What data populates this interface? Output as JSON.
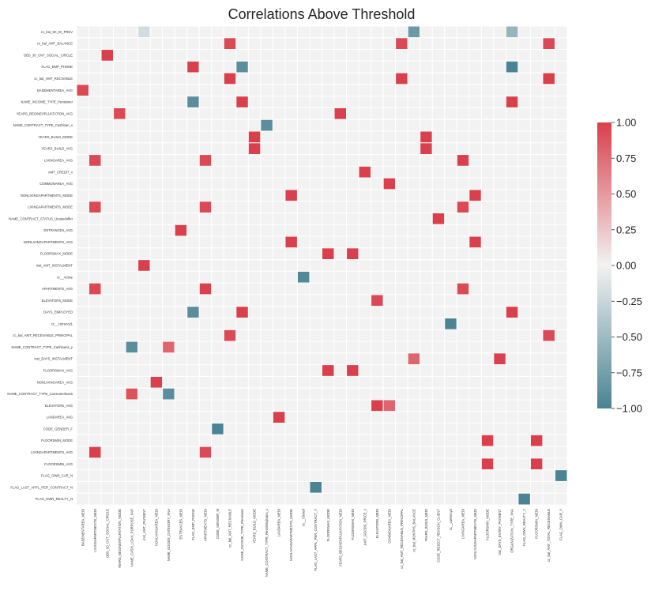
{
  "chart_data": {
    "type": "heatmap",
    "title": "Correlations Above Threshold",
    "xlabel": "",
    "ylabel": "",
    "colormap": {
      "low": "#4a8393",
      "mid": "#f2f2f2",
      "high": "#d9404c"
    },
    "value_range": [
      -1,
      1
    ],
    "colorbar_ticks": [
      "1.00",
      "0.75",
      "0.50",
      "0.25",
      "0.00",
      "−0.25",
      "−0.50",
      "−0.75",
      "−1.00"
    ],
    "rows": [
      "cc_bal_SK_ID_PREV",
      "cc_bal_AMT_BALANCE",
      "OBS_30_CNT_SOCIAL_CIRCLE",
      "FLAG_EMP_PHONE",
      "cc_bal_AMT_RECIVABLE",
      "BASEMENTAREA_AVG",
      "NAME_INCOME_TYPE_Pensioner",
      "YEARS_BEGINEXPLUATATION_AVG",
      "NAME_CONTRACT_TYPE_Cashloan_x",
      "YEARS_BUILD_MODE",
      "YEARS_BUILD_AVG",
      "LIVINGAREA_AVG",
      "AMT_CREDIT_x",
      "COMMONAREA_AVG",
      "NONLIVINGAPARTMENTS_MODE",
      "LIVINGAPARTMENTS_MODE",
      "NAME_CONTRACT_STATUS_Unusedoffer",
      "ENTRANCES_AVG",
      "NONLIVINGAPARTMENTS_AVG",
      "FLOORSMAX_MODE",
      "inst_AMT_INSTALMENT",
      "cc__Active",
      "APARTMENTS_AVG",
      "ELEVATORS_MODE",
      "DAYS_EMPLOYED",
      "cc__currency1",
      "cc_bal_AMT_RECEIVABLE_PRINCIPAL",
      "NAME_CONTRACT_TYPE_Cashloans_y",
      "inst_DAYS_INSTALMENT",
      "FLOORSMAX_AVG",
      "NONLIVINGAREA_AVG",
      "NAME_CONTRACT_TYPE_Consumerloans",
      "ELEVATORS_AVG",
      "LANDAREA_AVG",
      "CODE_GENDER_F",
      "FLOORSMIN_MODE",
      "LIVINGAPARTMENTS_AVG",
      "FLOORSMIN_AVG",
      "FLAG_OWN_CAR_N",
      "FLAG_LAST_APPL_PER_CONTRACT_N",
      "FLAG_OWN_REALTY_N"
    ],
    "columns": [
      "BASEMENTAREA_MEDI",
      "LIVINGAPARTMENTS_MEDI",
      "OBS_60_CNT_SOCIAL_CIRCLE",
      "YEARS_BEGINEXPLUATATION_MODE",
      "NAME_CASH_LOAN_PURPOSE_XAP",
      "inst_AMT_PAYMENT",
      "NONLIVINGAREA_MEDI",
      "NAME_GOODS_CATEGORY_XNA",
      "ENTRANCES_MEDI",
      "FLAG_EMP_PHONE",
      "APARTMENTS_MEDI",
      "CODE_GENDER_M",
      "cc_bal_AMT_RECIVABLE",
      "NAME_INCOME_TYPE_Pensioner",
      "YEARS_BUILD_MODE",
      "NAME_CONTRACT_TYPE_Revolvingloans_x",
      "LANDAREA_MEDI",
      "NONLIVINGAPARTMENTS_MODE",
      "cc__Closed",
      "FLAG_LAST_APPL_PER_CONTRACT_Y",
      "FLOORSMAX_MODE",
      "YEARS_BEGINEXPLUATATION_MEDI",
      "FLOORSMAX_MEDI",
      "AMT_GOODS_PRICE_x",
      "ELEVATORS_MEDI",
      "COMMONAREA_MEDI",
      "cc_bal_AMT_RECEIVABLE_PRINCIPAL",
      "cc_bal_MONTHS_BALANCE",
      "YEARS_BUILD_MEDI",
      "CODE_REJECT_REASON_CLIENT",
      "cc__currency2",
      "LIVINGAREA_MEDI",
      "NONLIVINGAPARTMENTS_MEDI",
      "FLOORSMIN_MODE",
      "inst_DAYS_ENTRY_PAYMENT",
      "ORGANIZATION_TYPE_XNA",
      "FLAG_OWN_REALTY_Y",
      "FLOORSMIN_MEDI",
      "cc_bal_AMT_TOTAL_RECEIVABLE",
      "FLAG_OWN_CAR_Y"
    ],
    "strong_cells": [
      {
        "row": "cc_bal_SK_ID_PREV",
        "col": "cc_bal_MONTHS_BALANCE",
        "value": -0.8
      },
      {
        "row": "cc_bal_SK_ID_PREV",
        "col": "ORGANIZATION_TYPE_XNA",
        "value": -0.55
      },
      {
        "row": "cc_bal_SK_ID_PREV",
        "col": "inst_AMT_PAYMENT",
        "value": -0.2
      },
      {
        "row": "cc_bal_AMT_BALANCE",
        "col": "cc_bal_AMT_RECIVABLE",
        "value": 0.95
      },
      {
        "row": "cc_bal_AMT_BALANCE",
        "col": "cc_bal_AMT_RECEIVABLE_PRINCIPAL",
        "value": 0.95
      },
      {
        "row": "cc_bal_AMT_BALANCE",
        "col": "cc_bal_AMT_TOTAL_RECEIVABLE",
        "value": 0.95
      },
      {
        "row": "OBS_30_CNT_SOCIAL_CIRCLE",
        "col": "OBS_60_CNT_SOCIAL_CIRCLE",
        "value": 1.0
      },
      {
        "row": "FLAG_EMP_PHONE",
        "col": "FLAG_EMP_PHONE",
        "value": 1.0
      },
      {
        "row": "FLAG_EMP_PHONE",
        "col": "NAME_INCOME_TYPE_Pensioner",
        "value": -0.9
      },
      {
        "row": "FLAG_EMP_PHONE",
        "col": "ORGANIZATION_TYPE_XNA",
        "value": -1.0
      },
      {
        "row": "cc_bal_AMT_RECIVABLE",
        "col": "cc_bal_AMT_RECIVABLE",
        "value": 1.0
      },
      {
        "row": "cc_bal_AMT_RECIVABLE",
        "col": "cc_bal_AMT_RECEIVABLE_PRINCIPAL",
        "value": 1.0
      },
      {
        "row": "cc_bal_AMT_RECIVABLE",
        "col": "cc_bal_AMT_TOTAL_RECEIVABLE",
        "value": 1.0
      },
      {
        "row": "BASEMENTAREA_AVG",
        "col": "BASEMENTAREA_MEDI",
        "value": 0.95
      },
      {
        "row": "NAME_INCOME_TYPE_Pensioner",
        "col": "FLAG_EMP_PHONE",
        "value": -0.9
      },
      {
        "row": "NAME_INCOME_TYPE_Pensioner",
        "col": "NAME_INCOME_TYPE_Pensioner",
        "value": 1.0
      },
      {
        "row": "NAME_INCOME_TYPE_Pensioner",
        "col": "ORGANIZATION_TYPE_XNA",
        "value": 1.0
      },
      {
        "row": "YEARS_BEGINEXPLUATATION_AVG",
        "col": "YEARS_BEGINEXPLUATATION_MODE",
        "value": 0.95
      },
      {
        "row": "YEARS_BEGINEXPLUATATION_AVG",
        "col": "YEARS_BEGINEXPLUATATION_MEDI",
        "value": 1.0
      },
      {
        "row": "NAME_CONTRACT_TYPE_Cashloan_x",
        "col": "NAME_CONTRACT_TYPE_Revolvingloans_x",
        "value": -0.9
      },
      {
        "row": "YEARS_BUILD_MODE",
        "col": "YEARS_BUILD_MODE",
        "value": 1.0
      },
      {
        "row": "YEARS_BUILD_MODE",
        "col": "YEARS_BUILD_MEDI",
        "value": 1.0
      },
      {
        "row": "YEARS_BUILD_AVG",
        "col": "YEARS_BUILD_MODE",
        "value": 1.0
      },
      {
        "row": "YEARS_BUILD_AVG",
        "col": "YEARS_BUILD_MEDI",
        "value": 1.0
      },
      {
        "row": "LIVINGAREA_AVG",
        "col": "LIVINGAPARTMENTS_MEDI",
        "value": 0.95
      },
      {
        "row": "LIVINGAREA_AVG",
        "col": "APARTMENTS_MEDI",
        "value": 0.95
      },
      {
        "row": "LIVINGAREA_AVG",
        "col": "LIVINGAREA_MEDI",
        "value": 1.0
      },
      {
        "row": "AMT_CREDIT_x",
        "col": "AMT_GOODS_PRICE_x",
        "value": 1.0
      },
      {
        "row": "COMMONAREA_AVG",
        "col": "COMMONAREA_MEDI",
        "value": 1.0
      },
      {
        "row": "NONLIVINGAPARTMENTS_MODE",
        "col": "NONLIVINGAPARTMENTS_MODE",
        "value": 1.0
      },
      {
        "row": "NONLIVINGAPARTMENTS_MODE",
        "col": "NONLIVINGAPARTMENTS_MEDI",
        "value": 1.0
      },
      {
        "row": "LIVINGAPARTMENTS_MODE",
        "col": "LIVINGAPARTMENTS_MEDI",
        "value": 0.95
      },
      {
        "row": "LIVINGAPARTMENTS_MODE",
        "col": "APARTMENTS_MEDI",
        "value": 0.95
      },
      {
        "row": "LIVINGAPARTMENTS_MODE",
        "col": "LIVINGAREA_MEDI",
        "value": 0.95
      },
      {
        "row": "NAME_CONTRACT_STATUS_Unusedoffer",
        "col": "CODE_REJECT_REASON_CLIENT",
        "value": 1.0
      },
      {
        "row": "ENTRANCES_AVG",
        "col": "ENTRANCES_MEDI",
        "value": 1.0
      },
      {
        "row": "NONLIVINGAPARTMENTS_AVG",
        "col": "NONLIVINGAPARTMENTS_MODE",
        "value": 1.0
      },
      {
        "row": "NONLIVINGAPARTMENTS_AVG",
        "col": "NONLIVINGAPARTMENTS_MEDI",
        "value": 1.0
      },
      {
        "row": "FLOORSMAX_MODE",
        "col": "FLOORSMAX_MODE",
        "value": 1.0
      },
      {
        "row": "FLOORSMAX_MODE",
        "col": "FLOORSMAX_MEDI",
        "value": 1.0
      },
      {
        "row": "inst_AMT_INSTALMENT",
        "col": "inst_AMT_PAYMENT",
        "value": 1.0
      },
      {
        "row": "cc__Active",
        "col": "cc__Closed",
        "value": -0.95
      },
      {
        "row": "APARTMENTS_AVG",
        "col": "LIVINGAPARTMENTS_MEDI",
        "value": 0.95
      },
      {
        "row": "APARTMENTS_AVG",
        "col": "APARTMENTS_MEDI",
        "value": 1.0
      },
      {
        "row": "APARTMENTS_AVG",
        "col": "LIVINGAREA_MEDI",
        "value": 0.95
      },
      {
        "row": "ELEVATORS_MODE",
        "col": "ELEVATORS_MEDI",
        "value": 0.95
      },
      {
        "row": "DAYS_EMPLOYED",
        "col": "FLAG_EMP_PHONE",
        "value": -0.9
      },
      {
        "row": "DAYS_EMPLOYED",
        "col": "NAME_INCOME_TYPE_Pensioner",
        "value": 1.0
      },
      {
        "row": "DAYS_EMPLOYED",
        "col": "ORGANIZATION_TYPE_XNA",
        "value": 1.0
      },
      {
        "row": "cc__currency1",
        "col": "cc__currency2",
        "value": -1.0
      },
      {
        "row": "cc_bal_AMT_RECEIVABLE_PRINCIPAL",
        "col": "cc_bal_AMT_RECIVABLE",
        "value": 0.95
      },
      {
        "row": "cc_bal_AMT_RECEIVABLE_PRINCIPAL",
        "col": "cc_bal_AMT_TOTAL_RECEIVABLE",
        "value": 0.95
      },
      {
        "row": "NAME_CONTRACT_TYPE_Cashloans_y",
        "col": "NAME_CASH_LOAN_PURPOSE_XAP",
        "value": -0.9
      },
      {
        "row": "NAME_CONTRACT_TYPE_Cashloans_y",
        "col": "NAME_GOODS_CATEGORY_XNA",
        "value": 0.8
      },
      {
        "row": "inst_DAYS_INSTALMENT",
        "col": "cc_bal_MONTHS_BALANCE",
        "value": 0.8
      },
      {
        "row": "inst_DAYS_INSTALMENT",
        "col": "inst_DAYS_ENTRY_PAYMENT",
        "value": 1.0
      },
      {
        "row": "FLOORSMAX_AVG",
        "col": "FLOORSMAX_MODE",
        "value": 1.0
      },
      {
        "row": "FLOORSMAX_AVG",
        "col": "FLOORSMAX_MEDI",
        "value": 1.0
      },
      {
        "row": "NONLIVINGAREA_AVG",
        "col": "NONLIVINGAREA_MEDI",
        "value": 1.0
      },
      {
        "row": "NAME_CONTRACT_TYPE_Consumerloans",
        "col": "NAME_CASH_LOAN_PURPOSE_XAP",
        "value": 0.9
      },
      {
        "row": "NAME_CONTRACT_TYPE_Consumerloans",
        "col": "NAME_GOODS_CATEGORY_XNA",
        "value": -0.9
      },
      {
        "row": "ELEVATORS_AVG",
        "col": "ELEVATORS_MEDI",
        "value": 1.0
      },
      {
        "row": "ELEVATORS_AVG",
        "col": "COMMONAREA_MEDI",
        "value": 0.8
      },
      {
        "row": "LANDAREA_AVG",
        "col": "LANDAREA_MEDI",
        "value": 1.0
      },
      {
        "row": "CODE_GENDER_F",
        "col": "CODE_GENDER_M",
        "value": -1.0
      },
      {
        "row": "FLOORSMIN_MODE",
        "col": "FLOORSMIN_MODE",
        "value": 1.0
      },
      {
        "row": "FLOORSMIN_MODE",
        "col": "FLOORSMIN_MEDI",
        "value": 1.0
      },
      {
        "row": "LIVINGAPARTMENTS_AVG",
        "col": "LIVINGAPARTMENTS_MEDI",
        "value": 1.0
      },
      {
        "row": "LIVINGAPARTMENTS_AVG",
        "col": "APARTMENTS_MEDI",
        "value": 0.95
      },
      {
        "row": "FLOORSMIN_AVG",
        "col": "FLOORSMIN_MODE",
        "value": 1.0
      },
      {
        "row": "FLOORSMIN_AVG",
        "col": "FLOORSMIN_MEDI",
        "value": 1.0
      },
      {
        "row": "FLAG_OWN_CAR_N",
        "col": "FLAG_OWN_CAR_Y",
        "value": -1.0
      },
      {
        "row": "FLAG_LAST_APPL_PER_CONTRACT_N",
        "col": "FLAG_LAST_APPL_PER_CONTRACT_Y",
        "value": -1.0
      },
      {
        "row": "FLAG_OWN_REALTY_N",
        "col": "FLAG_OWN_REALTY_Y",
        "value": -1.0
      }
    ],
    "grid": true,
    "legend": "colorbar-right"
  }
}
